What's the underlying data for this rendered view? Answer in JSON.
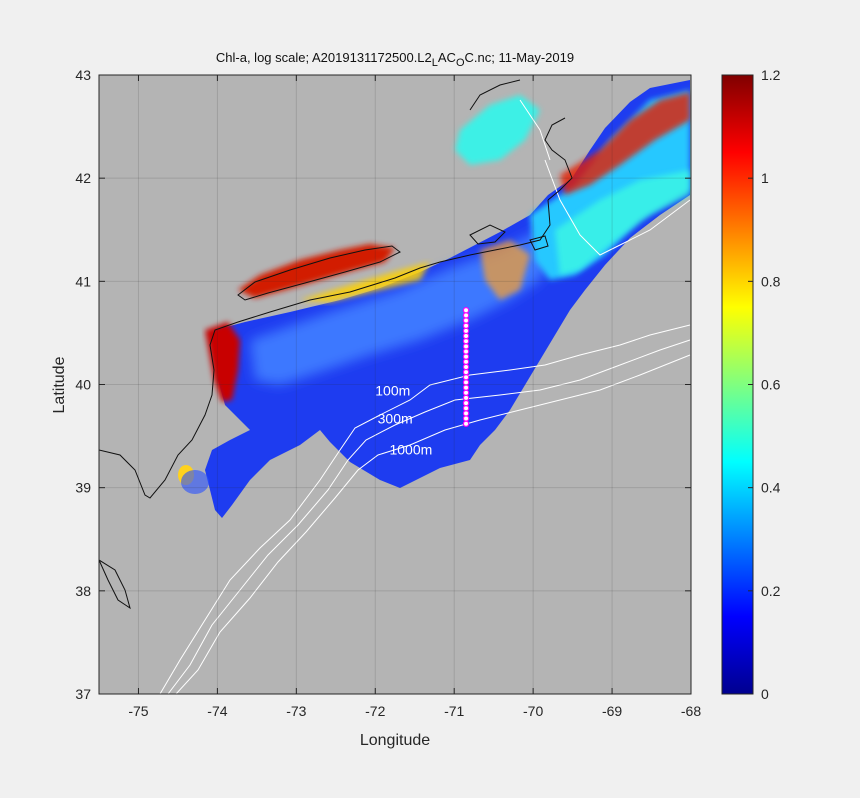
{
  "chart_data": {
    "type": "heatmap",
    "title_parts": {
      "main": "Chl-a, log scale; A2019131172500.L2",
      "sub1": "L",
      "mid1": "AC",
      "sub2": "O",
      "tail": "C.nc; 11-May-2019"
    },
    "xlabel": "Longitude",
    "ylabel": "Latitude",
    "xlim": [
      -75.5,
      -68
    ],
    "ylim": [
      37,
      43
    ],
    "xticks": [
      -75,
      -74,
      -73,
      -72,
      -71,
      -70,
      -69,
      -68
    ],
    "yticks": [
      37,
      38,
      39,
      40,
      41,
      42,
      43
    ],
    "grid": true,
    "colorbar": {
      "colormap": "jet",
      "range": [
        0,
        1.2
      ],
      "ticks": [
        0,
        0.2,
        0.4,
        0.6,
        0.8,
        1,
        1.2
      ],
      "tick_labels": [
        "0",
        "0.2",
        "0.4",
        "0.6",
        "0.8",
        "1",
        "1.2"
      ]
    },
    "contours": [
      {
        "label": "100m",
        "label_pos": [
          -72.0,
          39.94
        ]
      },
      {
        "label": "300m",
        "label_pos": [
          -71.97,
          39.67
        ]
      },
      {
        "label": "1000m",
        "label_pos": [
          -71.82,
          39.37
        ]
      }
    ],
    "transect": {
      "lon": -70.85,
      "lat_start": 39.62,
      "lat_end": 40.72,
      "n_stations": 23,
      "color": "#ff00ff"
    },
    "colors": {
      "land": "#b4b4b4",
      "background": "#f0f0f0"
    }
  }
}
